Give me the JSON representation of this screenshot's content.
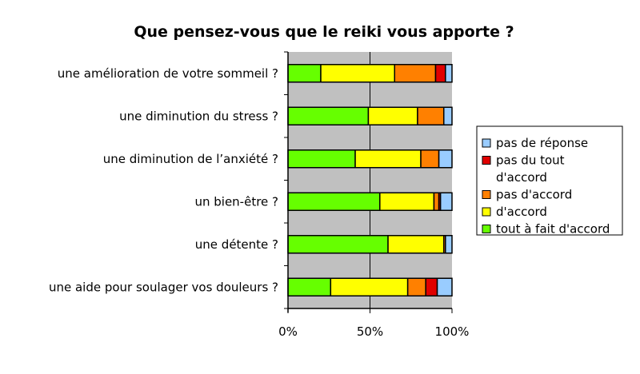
{
  "chart_data": {
    "type": "bar",
    "orientation": "horizontal",
    "stacked": "percent",
    "title": "Que pensez-vous que le reiki vous apporte ?",
    "categories": [
      "une amélioration de votre sommeil ?",
      "une diminution du stress ?",
      "une diminution de l’anxiété ?",
      "un bien-être ?",
      "une détente ?",
      "une aide pour soulager vos douleurs ?"
    ],
    "series": [
      {
        "name": "tout à fait d'accord",
        "color": "#66FF00",
        "values": [
          20,
          49,
          41,
          56,
          61,
          26
        ]
      },
      {
        "name": "d'accord",
        "color": "#FFFF00",
        "values": [
          45,
          30,
          40,
          33,
          34,
          47
        ]
      },
      {
        "name": "pas d'accord",
        "color": "#FF8000",
        "values": [
          25,
          16,
          11,
          3,
          1,
          11
        ]
      },
      {
        "name": "pas du tout d'accord",
        "color": "#E00000",
        "values": [
          6,
          0,
          0,
          1,
          0,
          7
        ]
      },
      {
        "name": "pas de réponse",
        "color": "#99CCFF",
        "values": [
          4,
          5,
          8,
          7,
          4,
          9
        ]
      }
    ],
    "x_ticks": [
      "0%",
      "50%",
      "100%"
    ],
    "xlim": [
      0,
      100
    ],
    "grid": true,
    "legend": {
      "position": "right",
      "entries": [
        {
          "series": "pas de réponse",
          "lines": [
            "pas de réponse"
          ]
        },
        {
          "series": "pas du tout d'accord",
          "lines": [
            "pas du tout",
            "d'accord"
          ]
        },
        {
          "series": "pas d'accord",
          "lines": [
            "pas d'accord"
          ]
        },
        {
          "series": "d'accord",
          "lines": [
            "d'accord"
          ]
        },
        {
          "series": "tout à fait d'accord",
          "lines": [
            "tout à fait d'accord"
          ]
        }
      ]
    },
    "plot_background": "#C0C0C0"
  }
}
